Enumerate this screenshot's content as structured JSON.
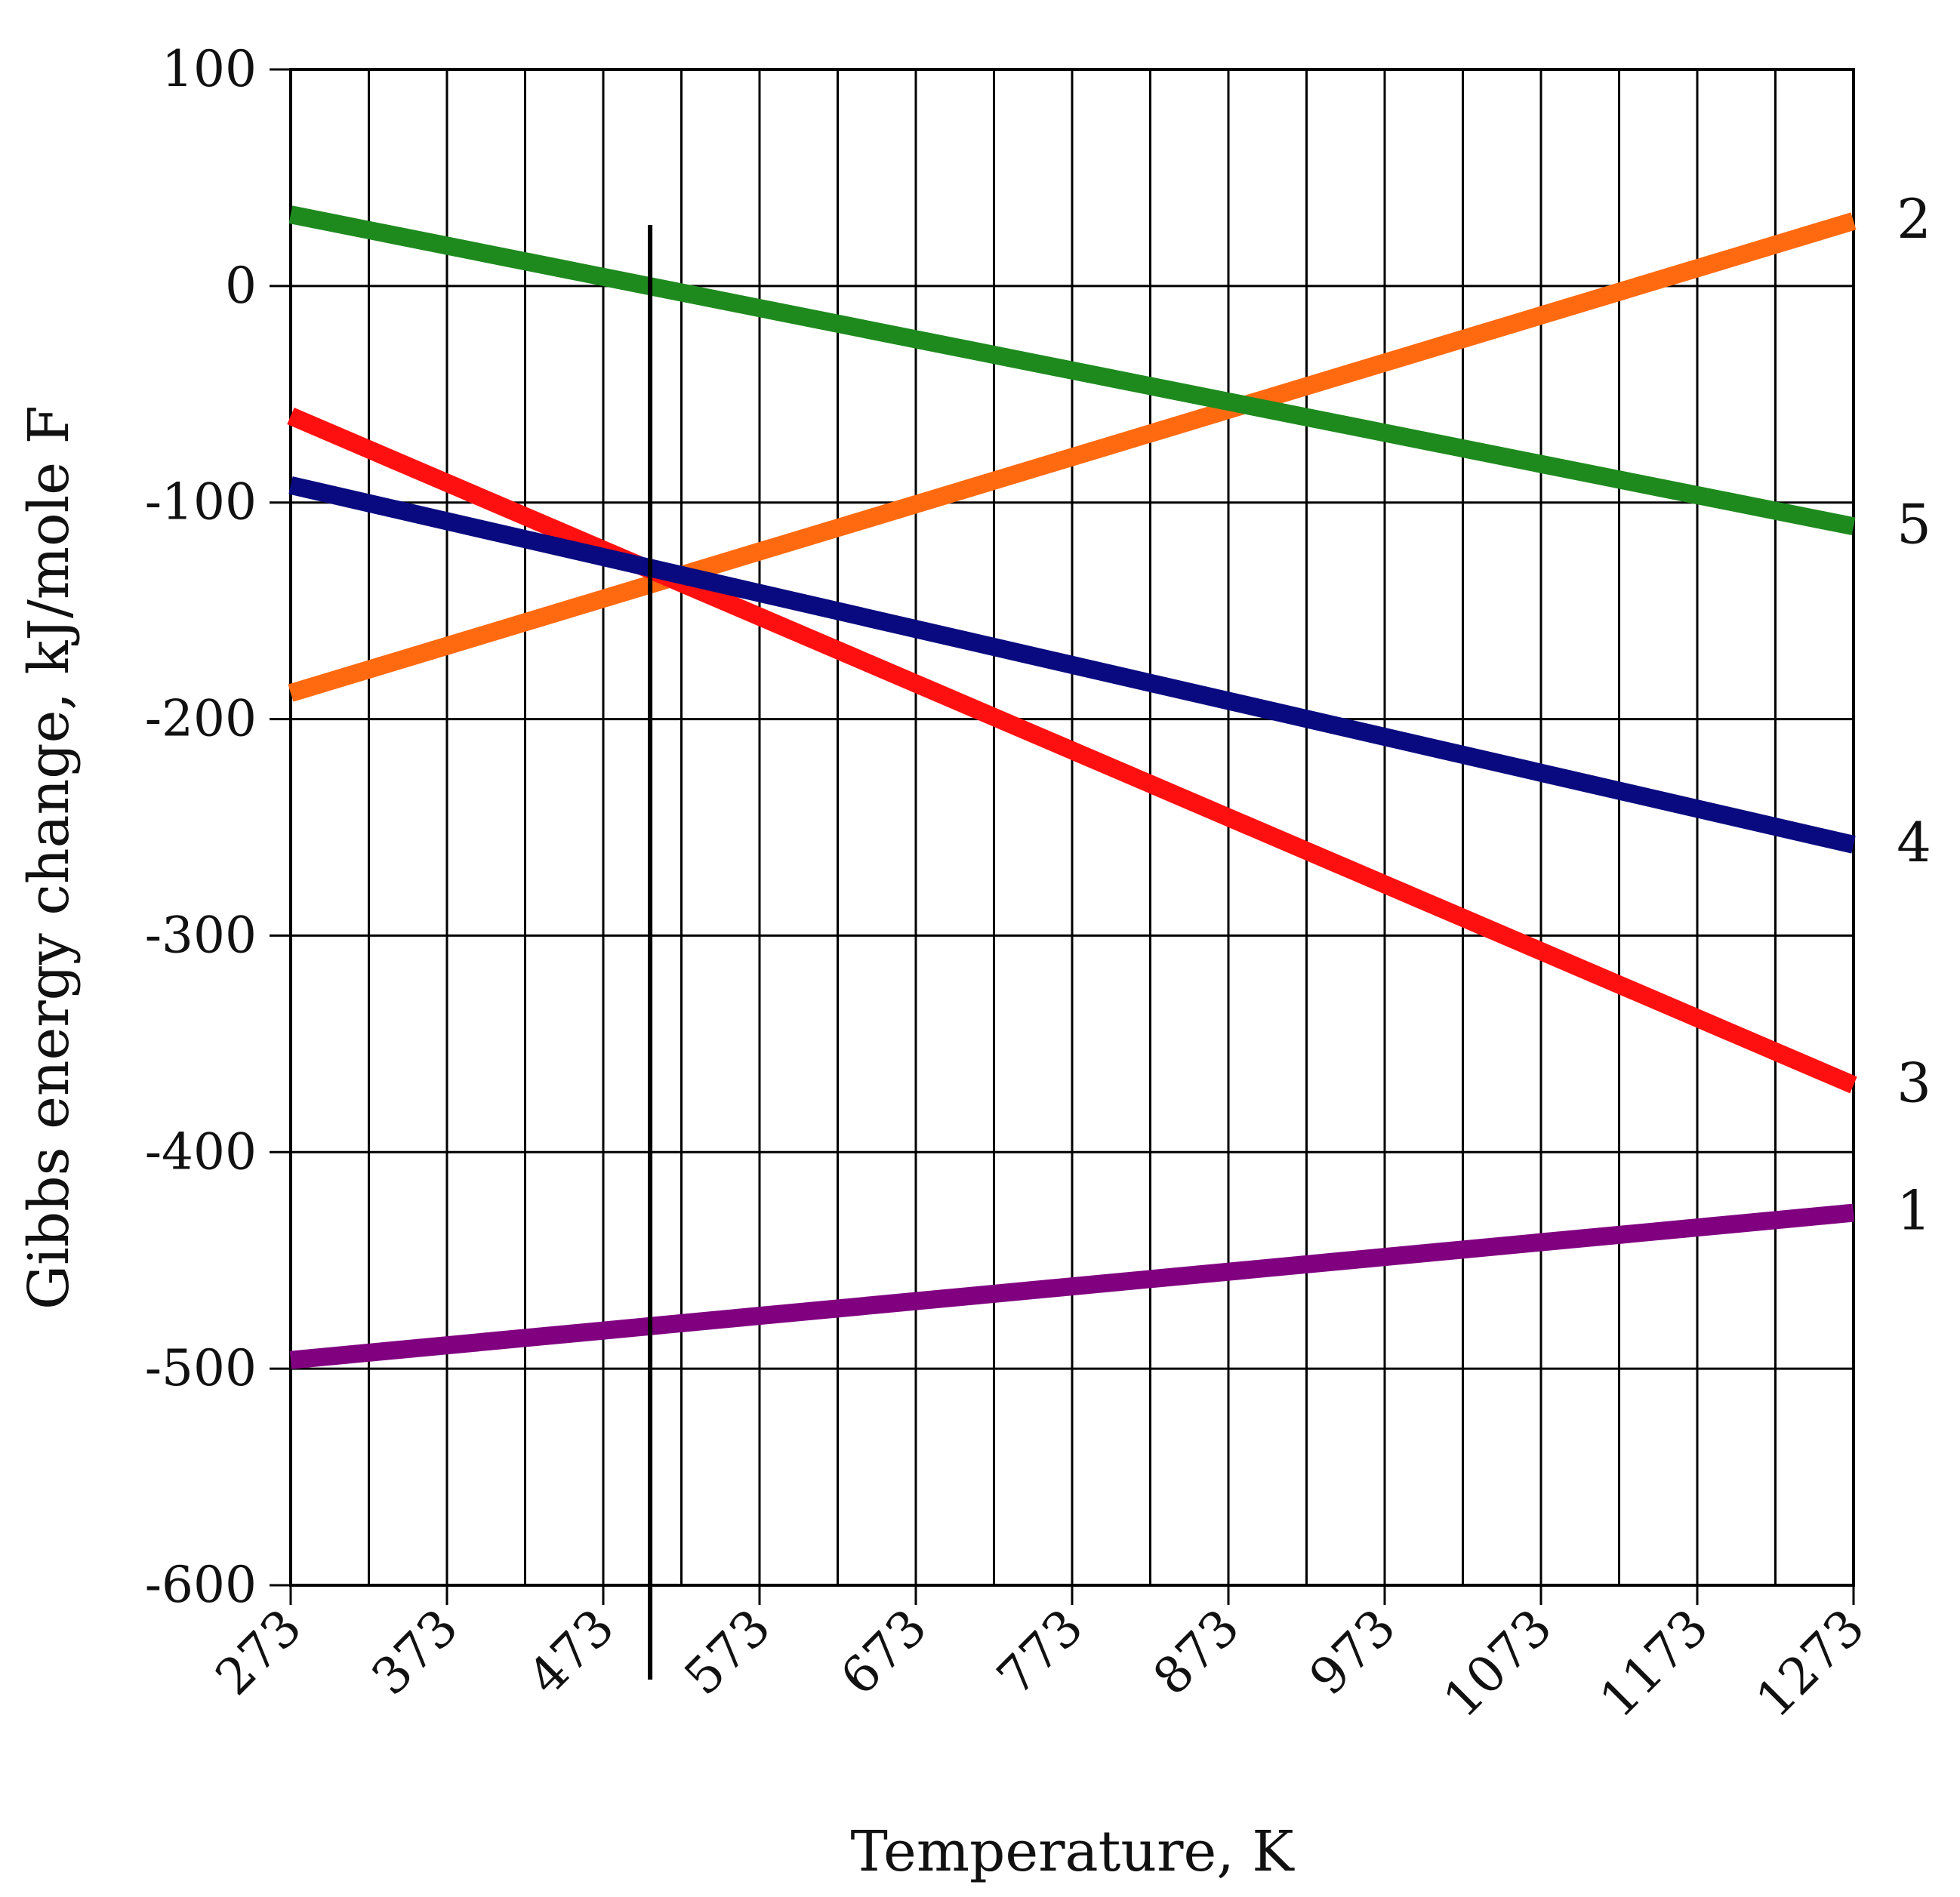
{
  "chart_data": {
    "type": "line",
    "title": "",
    "xlabel": "Temperature, K",
    "ylabel": "Gibbs energy change, kJ/mole F",
    "xlim": [
      273,
      1273
    ],
    "ylim": [
      -600,
      100
    ],
    "x_ticks": [
      "273",
      "373",
      "473",
      "573",
      "673",
      "773",
      "873",
      "973",
      "1073",
      "1173",
      "1273"
    ],
    "y_ticks": [
      "100",
      "0",
      "-100",
      "-200",
      "-300",
      "-400",
      "-500",
      "-600"
    ],
    "grid": true,
    "reference_line_x": 503,
    "series": [
      {
        "name": "1",
        "label": "1",
        "color": "#800080",
        "x": [
          273,
          1273
        ],
        "y": [
          -496,
          -428
        ]
      },
      {
        "name": "2",
        "label": "2",
        "color": "#ff6a10",
        "x": [
          273,
          1273
        ],
        "y": [
          -188,
          30
        ]
      },
      {
        "name": "3",
        "label": "3",
        "color": "#ff1010",
        "x": [
          273,
          1273
        ],
        "y": [
          -60,
          -369
        ]
      },
      {
        "name": "4",
        "label": "4",
        "color": "#0a0a80",
        "x": [
          273,
          1273
        ],
        "y": [
          -92,
          -258
        ]
      },
      {
        "name": "5",
        "label": "5",
        "color": "#1e8a1e",
        "x": [
          273,
          1273
        ],
        "y": [
          33,
          -111
        ]
      }
    ]
  }
}
